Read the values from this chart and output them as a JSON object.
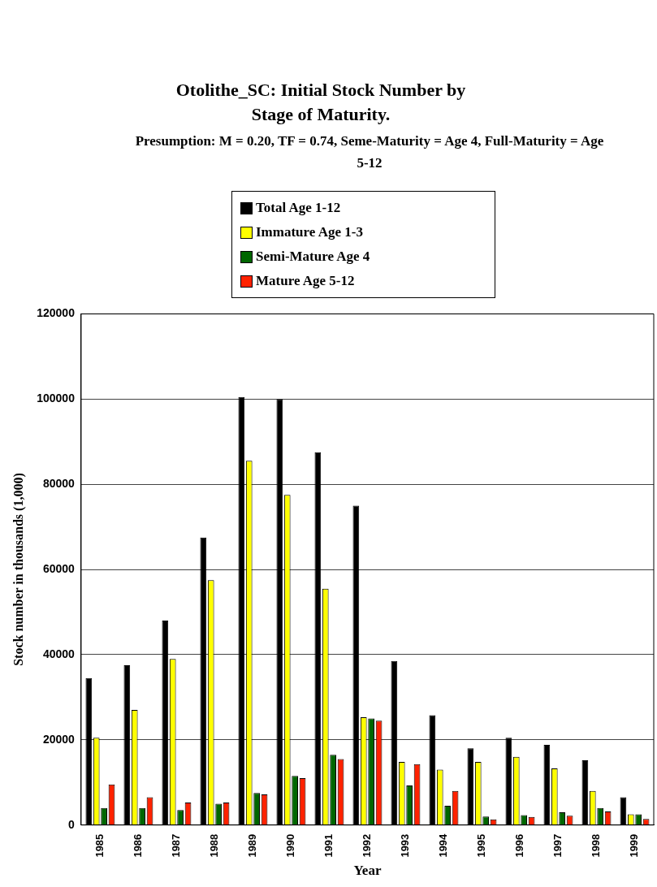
{
  "chart_data": {
    "type": "bar",
    "title": "Otolithe_SC: Initial Stock Number by Stage of Maturity.",
    "subtitle": "Presumption: M = 0.20, TF = 0.74, Seme-Maturity = Age 4, Full-Maturity = Age 5-12",
    "xlabel": "Year",
    "ylabel": "Stock number in thousands (1,000)",
    "categories": [
      "1985",
      "1986",
      "1987",
      "1988",
      "1989",
      "1990",
      "1991",
      "1992",
      "1993",
      "1994",
      "1995",
      "1996",
      "1997",
      "1998",
      "1999"
    ],
    "series": [
      {
        "name": "Total Age 1-12",
        "color": "#000000",
        "values": [
          34500,
          37500,
          48000,
          67500,
          100500,
          100000,
          87500,
          75000,
          38500,
          25800,
          18000,
          20500,
          18800,
          15200,
          6500
        ]
      },
      {
        "name": "Immature Age 1-3",
        "color": "#ffff00",
        "values": [
          20500,
          27000,
          39000,
          57500,
          85500,
          77500,
          55500,
          25300,
          14800,
          13000,
          14800,
          16000,
          13300,
          8000,
          2500
        ]
      },
      {
        "name": "Semi-Mature Age 4",
        "color": "#006600",
        "values": [
          4000,
          4000,
          3500,
          5000,
          7500,
          11500,
          16500,
          25000,
          9300,
          4500,
          2000,
          2300,
          3000,
          4000,
          2500
        ]
      },
      {
        "name": "Mature Age 5-12",
        "color": "#ff2200",
        "values": [
          9500,
          6500,
          5300,
          5300,
          7200,
          11000,
          15500,
          24500,
          14300,
          8000,
          1300,
          1900,
          2200,
          3200,
          1400
        ]
      }
    ],
    "ylim": [
      0,
      120000
    ],
    "yticks": [
      0,
      20000,
      40000,
      60000,
      80000,
      100000,
      120000
    ],
    "grid": "y",
    "legend": "top"
  }
}
